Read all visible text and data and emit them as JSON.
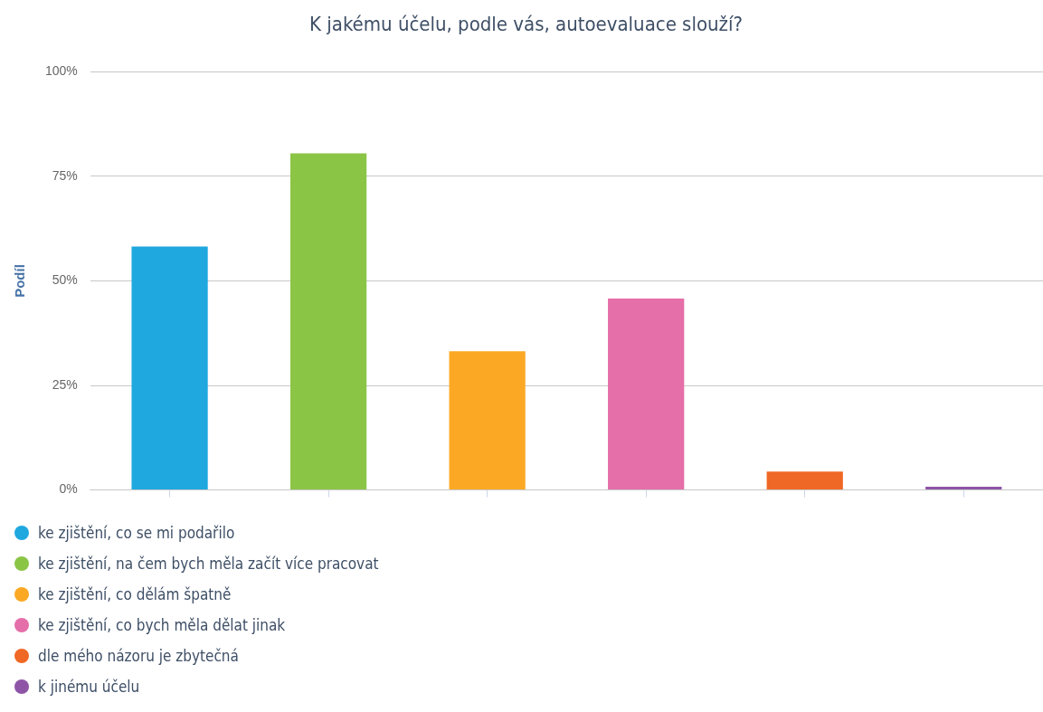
{
  "chart_data": {
    "type": "bar",
    "title": "K jakému účelu, podle vás, autoevaluace slouží?",
    "ylabel": "Podíl",
    "categories": [
      null,
      null,
      null,
      null,
      null,
      null
    ],
    "series": [
      {
        "name": "ke zjištění, co se mi podařilo",
        "color": "#1fa8e0",
        "values": [
          58.2,
          null,
          null,
          null,
          null,
          null
        ]
      },
      {
        "name": "ke zjištění, na čem bych měla začít více pracovat",
        "color": "#8bc546",
        "values": [
          null,
          80.5,
          null,
          null,
          null,
          null
        ]
      },
      {
        "name": "ke zjištění, co dělám špatně",
        "color": "#fba924",
        "values": [
          null,
          null,
          33.2,
          null,
          null,
          null
        ]
      },
      {
        "name": "ke zjištění, co bych měla dělat jinak",
        "color": "#e56fa9",
        "values": [
          null,
          null,
          null,
          45.8,
          null,
          null
        ]
      },
      {
        "name": "dle mého názoru je zbytečná",
        "color": "#f06826",
        "values": [
          null,
          null,
          null,
          null,
          4.4,
          null
        ]
      },
      {
        "name": "k jinému účelu",
        "color": "#8e55a7",
        "values": [
          null,
          null,
          null,
          null,
          null,
          0.8
        ]
      }
    ],
    "ylim": [
      0,
      100
    ],
    "yticks": [
      {
        "value": 0,
        "label": "0%"
      },
      {
        "value": 25,
        "label": "25%"
      },
      {
        "value": 50,
        "label": "50%"
      },
      {
        "value": 75,
        "label": "75%"
      },
      {
        "value": 100,
        "label": "100%"
      }
    ],
    "grid": "y",
    "legend": "bottom"
  }
}
